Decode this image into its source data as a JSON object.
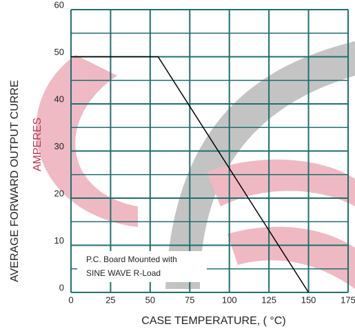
{
  "chart_data": {
    "type": "line",
    "x_label": "CASE TEMPERATURE, ( °C)",
    "y_label": "AVERAGE FORWARD OUTPUT CURRE",
    "y_unit_label": "AMPERES",
    "annotations": [
      "P.C. Board Mounted with",
      "SINE WAVE R-Load"
    ],
    "x": [
      0,
      55,
      150
    ],
    "series": [
      {
        "color": "#000000",
        "values": [
          50,
          50,
          0
        ]
      }
    ],
    "xlim": [
      0,
      175
    ],
    "xticks": [
      0,
      25,
      50,
      75,
      100,
      125,
      150,
      175
    ],
    "ylim": [
      0,
      60
    ],
    "yticks": [
      0,
      10,
      20,
      30,
      40,
      50,
      60
    ],
    "minor_yticks": [
      5,
      15,
      25,
      35,
      45,
      55
    ],
    "grid": true,
    "grid_color": "#1f6e6e"
  }
}
